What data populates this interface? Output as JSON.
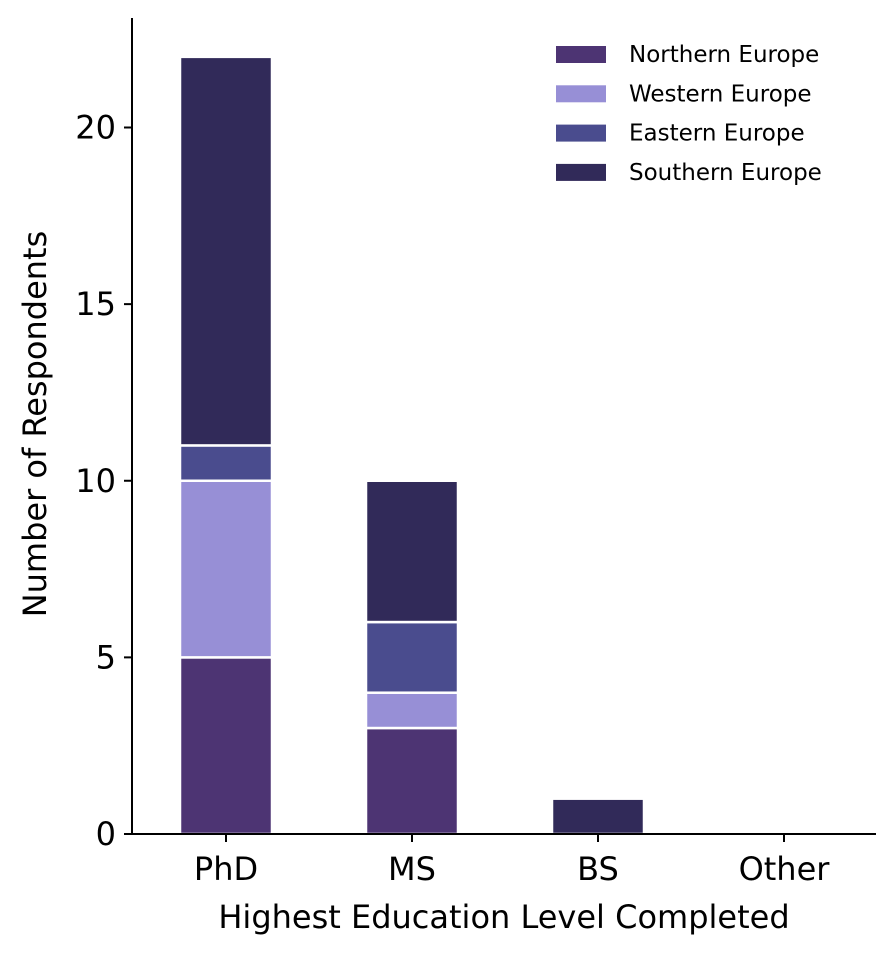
{
  "chart_data": {
    "type": "bar",
    "stacked": true,
    "categories": [
      "PhD",
      "MS",
      "BS",
      "Other"
    ],
    "series": [
      {
        "name": "Northern Europe",
        "color": "#4d3473",
        "values": [
          5,
          3,
          0,
          0
        ]
      },
      {
        "name": "Western Europe",
        "color": "#978fd6",
        "values": [
          5,
          1,
          0,
          0
        ]
      },
      {
        "name": "Eastern Europe",
        "color": "#4a4c8e",
        "values": [
          1,
          2,
          0,
          0
        ]
      },
      {
        "name": "Southern Europe",
        "color": "#312a59",
        "values": [
          11,
          4,
          1,
          0
        ]
      }
    ],
    "xlabel": "Highest Education Level Completed",
    "ylabel": "Number of Respondents",
    "ylim": [
      0,
      23.1
    ],
    "yticks": [
      0,
      5,
      10,
      15,
      20
    ],
    "grid": false,
    "legend_position": "top-right"
  }
}
